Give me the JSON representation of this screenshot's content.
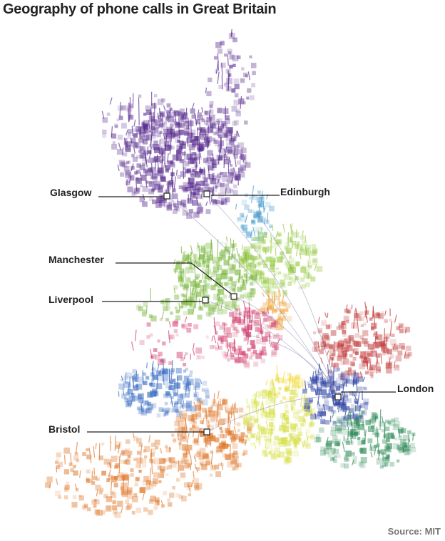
{
  "title": "Geography of phone calls in Great Britain",
  "source": "Source: MIT",
  "cities": [
    {
      "name": "Glasgow",
      "color": "#5a2d8f"
    },
    {
      "name": "Edinburgh",
      "color": "#5a2d8f"
    },
    {
      "name": "Manchester",
      "color": "#7ab73e"
    },
    {
      "name": "Liverpool",
      "color": "#7ab73e"
    },
    {
      "name": "Bristol",
      "color": "#e07a2e"
    },
    {
      "name": "London",
      "color": "#2a3fa3"
    }
  ],
  "region_colors": {
    "scotland": "#5a2d8f",
    "north_east": "#4e9fcf",
    "north_west": "#7ab73e",
    "yorkshire": "#9ccd4a",
    "midlands": "#d13b6a",
    "east_midlands": "#f0a33a",
    "wales": "#3d6fc4",
    "south_west": "#e07a2e",
    "central_south": "#d7e04a",
    "london": "#2a3fa3",
    "south_east": "#2e8b57",
    "east": "#c23a3a",
    "yellow": "#f2d93a"
  }
}
